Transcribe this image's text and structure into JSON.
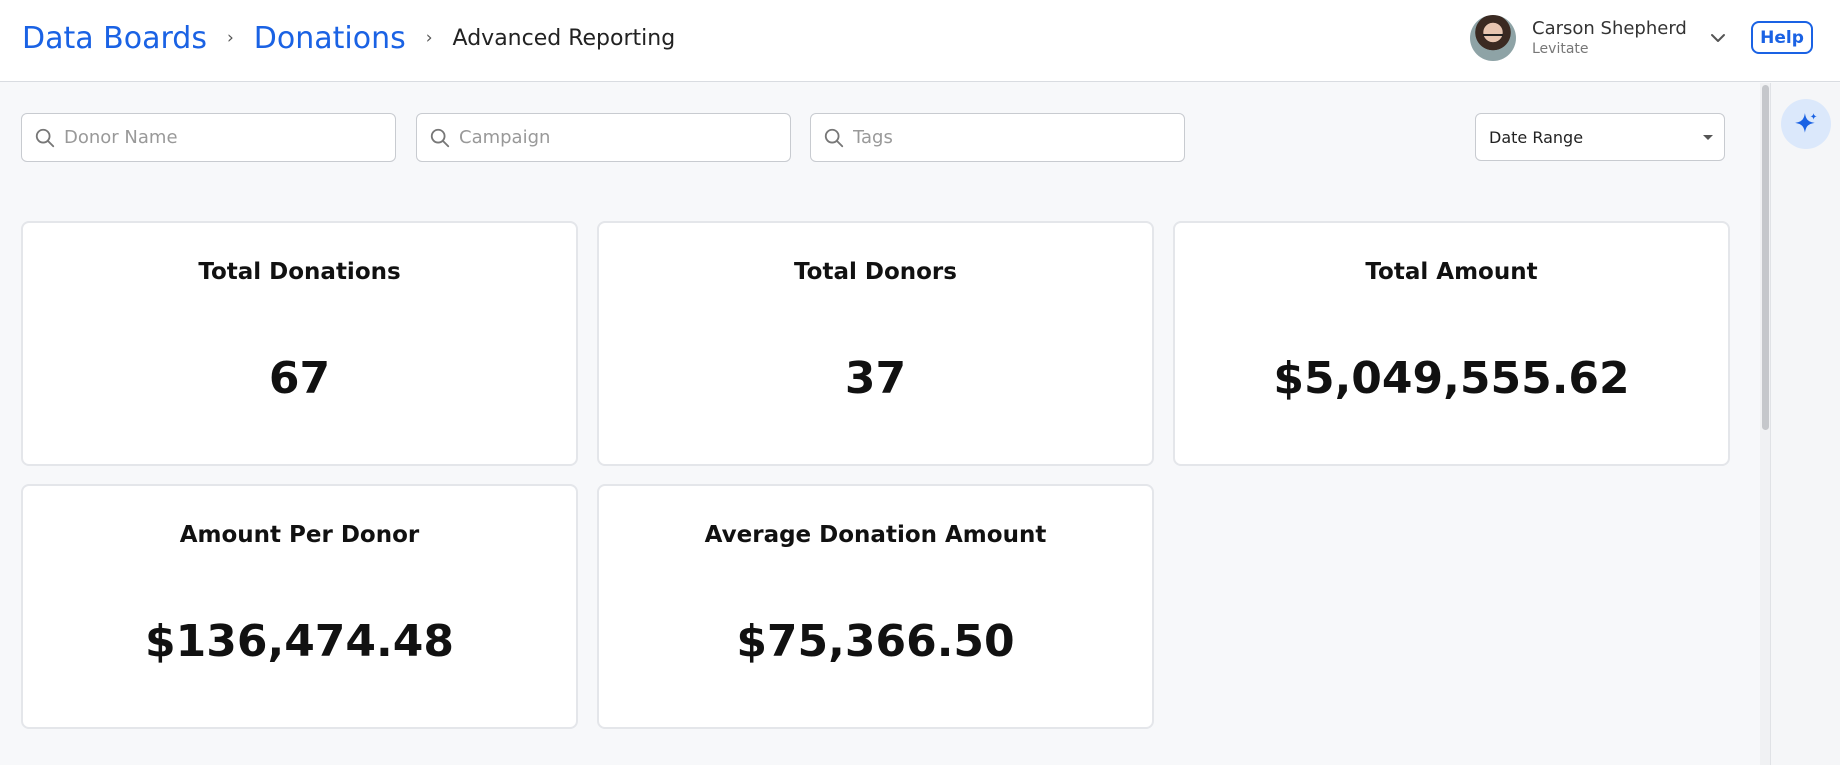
{
  "breadcrumb": {
    "items": [
      "Data Boards",
      "Donations"
    ],
    "separator": "›",
    "current": "Advanced Reporting"
  },
  "user": {
    "name": "Carson Shepherd",
    "org": "Levitate",
    "menu_icon": "chevron-down-icon"
  },
  "help_label": "Help",
  "filters": {
    "donor_placeholder": "Donor Name",
    "campaign_placeholder": "Campaign",
    "tags_placeholder": "Tags",
    "date_range": "Date Range"
  },
  "cards": [
    {
      "title": "Total Donations",
      "value": "67"
    },
    {
      "title": "Total Donors",
      "value": "37"
    },
    {
      "title": "Total Amount",
      "value": "$5,049,555.62"
    },
    {
      "title": "Amount Per Donor",
      "value": "$136,474.48"
    },
    {
      "title": "Average Donation Amount",
      "value": "$75,366.50"
    }
  ],
  "colors": {
    "accent": "#1a62e4",
    "ai_button_bg": "#dbe8fb"
  },
  "icons": {
    "search": "search-icon",
    "ai": "sparkle-icon"
  }
}
